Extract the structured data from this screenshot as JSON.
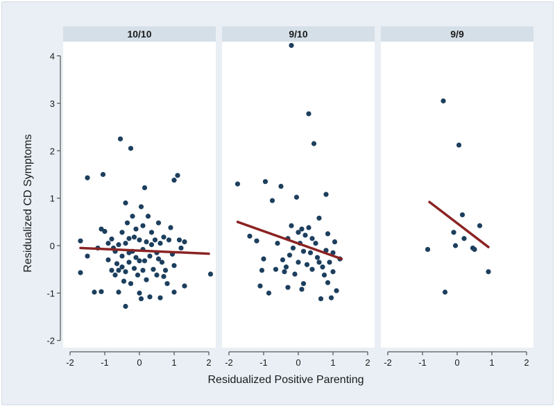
{
  "chart_data": {
    "type": "scatter",
    "layout": "faceted-3-panels",
    "xlabel": "Residualized Positive Parenting",
    "ylabel": "Residualized CD Symptoms",
    "xlim": [
      -2.2,
      2.2
    ],
    "ylim": [
      -2.15,
      4.3
    ],
    "x_ticks": [
      "-2",
      "-1",
      "0",
      "1",
      "2"
    ],
    "y_ticks": [
      "-2",
      "-1",
      "0",
      "1",
      "2",
      "3",
      "4"
    ],
    "colors": {
      "panel_header": "#d5dfe8",
      "point": "#1d3f5e",
      "fit_line": "#8b2323",
      "background": "#e9eff4",
      "plot_area": "#ffffff"
    },
    "panels": [
      {
        "title": "10/10",
        "fit_line": {
          "x": [
            -1.7,
            2.0
          ],
          "y": [
            -0.05,
            -0.17
          ]
        },
        "points": [
          [
            -1.7,
            0.1
          ],
          [
            -1.7,
            -0.57
          ],
          [
            -1.5,
            1.43
          ],
          [
            -1.5,
            -0.22
          ],
          [
            -1.3,
            -0.98
          ],
          [
            -1.1,
            -0.97
          ],
          [
            -1.05,
            1.5
          ],
          [
            -1.1,
            0.35
          ],
          [
            -1.0,
            0.3
          ],
          [
            -1.2,
            -0.05
          ],
          [
            -0.9,
            -0.3
          ],
          [
            -0.8,
            -0.52
          ],
          [
            -0.8,
            0.14
          ],
          [
            -0.7,
            -0.62
          ],
          [
            -0.7,
            -0.12
          ],
          [
            -0.6,
            0.02
          ],
          [
            -0.6,
            -0.52
          ],
          [
            -0.6,
            -0.98
          ],
          [
            -0.55,
            2.25
          ],
          [
            -0.5,
            -0.45
          ],
          [
            -0.5,
            0.28
          ],
          [
            -0.5,
            -0.22
          ],
          [
            -0.45,
            -0.75
          ],
          [
            -0.4,
            0.9
          ],
          [
            -0.4,
            0.05
          ],
          [
            -0.4,
            -1.28
          ],
          [
            -0.4,
            -0.55
          ],
          [
            -0.35,
            0.48
          ],
          [
            -0.3,
            -0.35
          ],
          [
            -0.3,
            0.15
          ],
          [
            -0.25,
            2.05
          ],
          [
            -0.25,
            -0.8
          ],
          [
            -0.2,
            -0.12
          ],
          [
            -0.2,
            0.62
          ],
          [
            -0.15,
            -0.48
          ],
          [
            -0.1,
            0.35
          ],
          [
            -0.1,
            -0.25
          ],
          [
            -0.05,
            -0.62
          ],
          [
            0.0,
            0.12
          ],
          [
            0.0,
            -1.0
          ],
          [
            0.0,
            -0.32
          ],
          [
            0.05,
            0.82
          ],
          [
            0.05,
            -1.12
          ],
          [
            0.1,
            0.42
          ],
          [
            0.1,
            -0.08
          ],
          [
            0.1,
            -0.52
          ],
          [
            0.15,
            1.22
          ],
          [
            0.15,
            -0.32
          ],
          [
            0.2,
            0.08
          ],
          [
            0.2,
            -0.72
          ],
          [
            0.25,
            0.62
          ],
          [
            0.3,
            -0.22
          ],
          [
            0.3,
            -1.08
          ],
          [
            0.35,
            0.28
          ],
          [
            0.4,
            -0.5
          ],
          [
            0.45,
            0.12
          ],
          [
            0.5,
            -0.15
          ],
          [
            0.5,
            -0.62
          ],
          [
            0.55,
            0.48
          ],
          [
            0.6,
            -1.1
          ],
          [
            0.6,
            0.05
          ],
          [
            0.65,
            -0.35
          ],
          [
            0.7,
            0.18
          ],
          [
            0.75,
            -0.52
          ],
          [
            0.8,
            -0.8
          ],
          [
            0.85,
            0.12
          ],
          [
            0.9,
            0.38
          ],
          [
            0.95,
            -0.18
          ],
          [
            1.0,
            -0.42
          ],
          [
            1.0,
            -0.98
          ],
          [
            1.0,
            1.38
          ],
          [
            1.1,
            1.48
          ],
          [
            1.15,
            0.12
          ],
          [
            1.2,
            -0.05
          ],
          [
            1.3,
            0.08
          ],
          [
            1.3,
            -0.85
          ],
          [
            2.05,
            -0.6
          ],
          [
            -0.9,
            0.05
          ],
          [
            -0.75,
            -0.05
          ],
          [
            -0.3,
            -0.15
          ],
          [
            0.35,
            0.02
          ],
          [
            -0.15,
            0.18
          ],
          [
            0.55,
            -0.28
          ],
          [
            -0.65,
            -0.38
          ],
          [
            0.7,
            -0.65
          ]
        ]
      },
      {
        "title": "9/10",
        "fit_line": {
          "x": [
            -1.75,
            1.25
          ],
          "y": [
            0.5,
            -0.28
          ]
        },
        "points": [
          [
            -1.75,
            1.3
          ],
          [
            -1.4,
            0.2
          ],
          [
            -1.2,
            0.1
          ],
          [
            -1.1,
            -0.85
          ],
          [
            -1.0,
            -0.28
          ],
          [
            -1.05,
            -0.52
          ],
          [
            -0.95,
            1.35
          ],
          [
            -0.85,
            -1.0
          ],
          [
            -0.75,
            0.95
          ],
          [
            -0.65,
            -0.5
          ],
          [
            -0.5,
            1.25
          ],
          [
            -0.45,
            -0.3
          ],
          [
            -0.4,
            -0.55
          ],
          [
            -0.3,
            0.15
          ],
          [
            -0.3,
            -0.88
          ],
          [
            -0.2,
            4.22
          ],
          [
            -0.2,
            0.42
          ],
          [
            -0.15,
            -0.05
          ],
          [
            -0.1,
            -0.6
          ],
          [
            -0.05,
            1.02
          ],
          [
            0.0,
            0.28
          ],
          [
            0.0,
            -0.35
          ],
          [
            0.05,
            0.05
          ],
          [
            0.1,
            -0.92
          ],
          [
            0.1,
            0.35
          ],
          [
            0.15,
            -0.12
          ],
          [
            0.2,
            0.22
          ],
          [
            0.25,
            -0.4
          ],
          [
            0.3,
            2.78
          ],
          [
            0.3,
            0.38
          ],
          [
            0.35,
            -0.15
          ],
          [
            0.4,
            -0.5
          ],
          [
            0.45,
            2.15
          ],
          [
            0.5,
            0.05
          ],
          [
            0.55,
            -0.25
          ],
          [
            0.6,
            0.58
          ],
          [
            0.65,
            -1.12
          ],
          [
            0.7,
            -0.45
          ],
          [
            0.75,
            -0.62
          ],
          [
            0.8,
            1.08
          ],
          [
            0.8,
            -0.1
          ],
          [
            0.85,
            -0.78
          ],
          [
            0.9,
            -0.35
          ],
          [
            0.95,
            -1.1
          ],
          [
            1.0,
            -0.15
          ],
          [
            1.0,
            -0.55
          ],
          [
            1.05,
            0.08
          ],
          [
            1.1,
            -0.95
          ],
          [
            1.2,
            -0.28
          ],
          [
            -0.6,
            0.05
          ],
          [
            0.15,
            -0.8
          ],
          [
            -0.25,
            -0.2
          ],
          [
            0.4,
            0.15
          ],
          [
            0.6,
            -0.35
          ],
          [
            0.85,
            0.25
          ],
          [
            -0.35,
            -0.45
          ]
        ]
      },
      {
        "title": "9/9",
        "fit_line": {
          "x": [
            -0.8,
            0.9
          ],
          "y": [
            0.92,
            -0.03
          ]
        },
        "points": [
          [
            -0.4,
            3.05
          ],
          [
            0.05,
            2.12
          ],
          [
            -0.85,
            -0.08
          ],
          [
            -0.35,
            -0.98
          ],
          [
            -0.1,
            0.28
          ],
          [
            -0.05,
            0.0
          ],
          [
            0.15,
            0.65
          ],
          [
            0.2,
            0.15
          ],
          [
            0.45,
            -0.05
          ],
          [
            0.65,
            0.42
          ],
          [
            0.9,
            -0.55
          ],
          [
            0.5,
            -0.08
          ]
        ]
      }
    ]
  }
}
